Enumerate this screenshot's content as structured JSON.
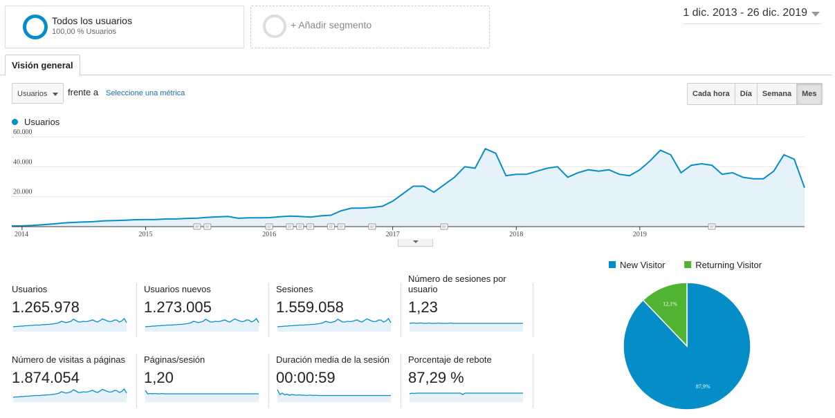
{
  "segments": {
    "active": {
      "name": "Todos los usuarios",
      "sub": "100,00 % Usuarios",
      "color": "#058dc7"
    },
    "add_label": "+ Añadir segmento"
  },
  "date_range": "1 dic. 2013 - 26 dic. 2019",
  "tabs": {
    "overview": "Visión general"
  },
  "controls": {
    "metric_select": "Usuarios",
    "versus": "frente a",
    "choose_metric": "Seleccione una métrica",
    "granularity": [
      "Cada hora",
      "Día",
      "Semana",
      "Mes"
    ],
    "granularity_active": "Mes"
  },
  "legend": {
    "label": "Usuarios",
    "color": "#058dc7"
  },
  "chart_data": {
    "type": "area",
    "series": [
      {
        "name": "Usuarios",
        "values": [
          400,
          500,
          800,
          1300,
          1800,
          2400,
          2800,
          3100,
          3300,
          3900,
          4000,
          4300,
          4600,
          4700,
          4700,
          5100,
          5100,
          5500,
          5700,
          6200,
          6500,
          6800,
          5600,
          5900,
          5900,
          6000,
          6600,
          7000,
          6800,
          6300,
          7200,
          7600,
          10600,
          12300,
          12300,
          12800,
          13600,
          17000,
          22000,
          27000,
          27000,
          23000,
          28000,
          33000,
          40000,
          39000,
          52000,
          49000,
          34000,
          35000,
          35000,
          37000,
          39000,
          40000,
          33000,
          36000,
          38000,
          37000,
          38000,
          35000,
          34000,
          38000,
          44000,
          51000,
          48000,
          36000,
          41000,
          42000,
          41000,
          35000,
          36000,
          33000,
          32000,
          32000,
          37000,
          48000,
          45000,
          26000
        ]
      }
    ],
    "ylim": [
      0,
      60000
    ],
    "yticks": [
      "20.000",
      "40.000",
      "60.000"
    ],
    "ytick_values": [
      20000,
      40000,
      60000
    ],
    "xticks": [
      "2014",
      "2015",
      "2016",
      "2017",
      "2018",
      "2019"
    ],
    "xtick_index": [
      1,
      13,
      25,
      37,
      49,
      61
    ],
    "annotation_index": [
      18,
      19,
      25,
      27,
      28,
      29,
      31,
      32,
      35,
      42,
      68
    ],
    "grid": true,
    "color": "#058dc7",
    "fill": "#e6f2fa"
  },
  "metrics": [
    {
      "label": "Usuarios",
      "value": "1.265.978",
      "spark": [
        10,
        11,
        11,
        12,
        12,
        13,
        13,
        14,
        14,
        15,
        15,
        15,
        16,
        16,
        17,
        17,
        18,
        19,
        20,
        22,
        26,
        24,
        22,
        24,
        26,
        32,
        28,
        24,
        24,
        26,
        25,
        26,
        28,
        30,
        26,
        24,
        28,
        33,
        30,
        27,
        25,
        26,
        30,
        29,
        24,
        27,
        34,
        22
      ]
    },
    {
      "label": "Usuarios nuevos",
      "value": "1.273.005",
      "spark": [
        10,
        11,
        11,
        12,
        12,
        13,
        13,
        14,
        14,
        15,
        15,
        15,
        16,
        16,
        17,
        17,
        18,
        19,
        20,
        22,
        26,
        24,
        22,
        24,
        26,
        32,
        28,
        24,
        24,
        26,
        25,
        26,
        28,
        30,
        26,
        24,
        28,
        33,
        30,
        27,
        25,
        26,
        30,
        29,
        24,
        27,
        34,
        22
      ]
    },
    {
      "label": "Sesiones",
      "value": "1.559.058",
      "spark": [
        10,
        11,
        11,
        12,
        12,
        13,
        13,
        14,
        14,
        15,
        15,
        15,
        16,
        16,
        17,
        17,
        18,
        19,
        20,
        22,
        26,
        24,
        22,
        24,
        26,
        32,
        28,
        24,
        24,
        26,
        25,
        26,
        28,
        30,
        26,
        24,
        28,
        33,
        30,
        27,
        25,
        26,
        30,
        29,
        24,
        27,
        34,
        22
      ]
    },
    {
      "label": "Número de sesiones por usuario",
      "value": "1,23",
      "spark": [
        20,
        21,
        21,
        20,
        21,
        21,
        20,
        20,
        21,
        20,
        20,
        20,
        21,
        20,
        20,
        20,
        20,
        21,
        20,
        20,
        20,
        20,
        20,
        20,
        20,
        20,
        20,
        20,
        20,
        20,
        20,
        20,
        20,
        20,
        20,
        20,
        20,
        20,
        20,
        20,
        20,
        20,
        20,
        20,
        20,
        20,
        20,
        20
      ]
    },
    {
      "label": "Número de visitas a páginas",
      "value": "1.874.054",
      "spark": [
        10,
        11,
        11,
        12,
        12,
        13,
        13,
        14,
        14,
        15,
        15,
        15,
        16,
        16,
        17,
        17,
        18,
        19,
        20,
        22,
        26,
        24,
        22,
        24,
        26,
        32,
        28,
        24,
        24,
        26,
        25,
        26,
        28,
        30,
        26,
        24,
        28,
        33,
        30,
        27,
        25,
        26,
        30,
        29,
        24,
        27,
        34,
        22
      ]
    },
    {
      "label": "Páginas/sesión",
      "value": "1,20",
      "spark": [
        30,
        20,
        21,
        20,
        21,
        20,
        20,
        21,
        20,
        20,
        20,
        20,
        20,
        20,
        20,
        20,
        20,
        20,
        20,
        20,
        20,
        20,
        20,
        20,
        20,
        20,
        20,
        20,
        20,
        20,
        20,
        20,
        20,
        20,
        20,
        20,
        20,
        20,
        20,
        20,
        20,
        20,
        20,
        20,
        20,
        20,
        20,
        20
      ]
    },
    {
      "label": "Duración media de la sesión",
      "value": "00:00:59",
      "spark": [
        32,
        18,
        22,
        17,
        19,
        16,
        18,
        17,
        16,
        17,
        16,
        16,
        15,
        16,
        16,
        15,
        16,
        15,
        15,
        15,
        15,
        15,
        15,
        15,
        15,
        15,
        15,
        15,
        15,
        15,
        15,
        15,
        15,
        15,
        15,
        15,
        15,
        15,
        15,
        15,
        15,
        15,
        15,
        15,
        15,
        15,
        15,
        15
      ]
    },
    {
      "label": "Porcentaje de rebote",
      "value": "87,29 %",
      "spark": [
        20,
        22,
        21,
        22,
        22,
        22,
        22,
        22,
        22,
        22,
        22,
        22,
        22,
        22,
        22,
        22,
        22,
        22,
        22,
        22,
        22,
        22,
        18,
        22,
        22,
        22,
        22,
        22,
        22,
        22,
        22,
        22,
        22,
        22,
        22,
        22,
        22,
        22,
        22,
        22,
        22,
        22,
        22,
        22,
        22,
        22,
        22,
        22
      ]
    }
  ],
  "pie": {
    "legend": [
      {
        "label": "New Visitor",
        "color": "#058dc7"
      },
      {
        "label": "Returning Visitor",
        "color": "#50b432"
      }
    ],
    "slices": [
      {
        "name": "New Visitor",
        "value": 87.9,
        "label": "87,9%",
        "color": "#058dc7"
      },
      {
        "name": "Returning Visitor",
        "value": 12.1,
        "label": "12,1%",
        "color": "#50b432"
      }
    ]
  }
}
